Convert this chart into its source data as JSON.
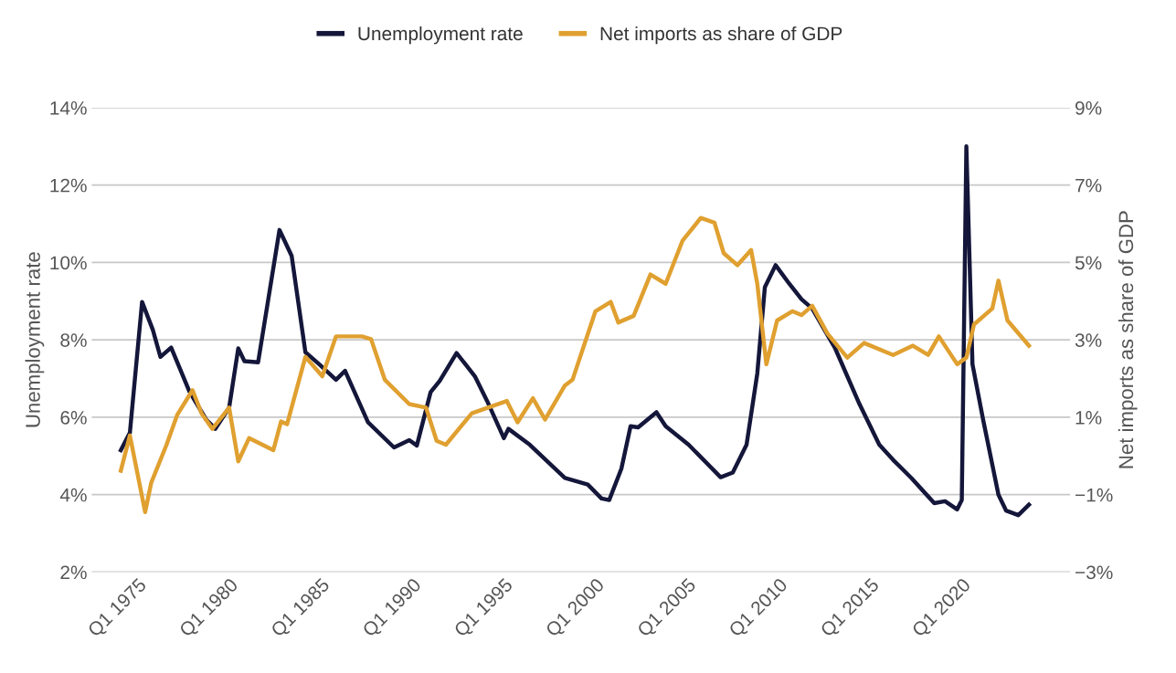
{
  "chart_data": {
    "type": "line",
    "ylabel": "Unemployment rate",
    "y2label": "Net imports as share of GDP",
    "xlim": [
      "1972-07",
      "2025-12"
    ],
    "xticks": [
      {
        "value": "1975-01",
        "label": "Q1 1975"
      },
      {
        "value": "1980-01",
        "label": "Q1 1980"
      },
      {
        "value": "1985-01",
        "label": "Q1 1985"
      },
      {
        "value": "1990-01",
        "label": "Q1 1990"
      },
      {
        "value": "1995-01",
        "label": "Q1 1995"
      },
      {
        "value": "2000-01",
        "label": "Q1 2000"
      },
      {
        "value": "2005-01",
        "label": "Q1 2005"
      },
      {
        "value": "2010-01",
        "label": "Q1 2010"
      },
      {
        "value": "2015-01",
        "label": "Q1 2015"
      },
      {
        "value": "2020-01",
        "label": "Q1 2020"
      }
    ],
    "ylim": [
      2,
      14
    ],
    "yticks": [
      {
        "value": 2,
        "label": "2%"
      },
      {
        "value": 4,
        "label": "4%"
      },
      {
        "value": 6,
        "label": "6%"
      },
      {
        "value": 8,
        "label": "8%"
      },
      {
        "value": 10,
        "label": "10%"
      },
      {
        "value": 12,
        "label": "12%"
      },
      {
        "value": 14,
        "label": "14%"
      }
    ],
    "y2lim": [
      -3,
      9
    ],
    "y2ticks": [
      {
        "value": -3,
        "label": "−3%"
      },
      {
        "value": -1,
        "label": "−1%"
      },
      {
        "value": 1,
        "label": "1%"
      },
      {
        "value": 3,
        "label": "3%"
      },
      {
        "value": 5,
        "label": "5%"
      },
      {
        "value": 7,
        "label": "7%"
      },
      {
        "value": 9,
        "label": "9%"
      }
    ],
    "grid": "y",
    "legend": "top",
    "marker": "none",
    "line_style": "solid",
    "series": [
      {
        "name": "Unemployment rate",
        "color": "#14163a",
        "x": [
          "1974-02",
          "1974-08",
          "1975-04",
          "1975-11",
          "1976-04",
          "1976-11",
          "1977-11",
          "1978-10",
          "1979-04",
          "1980-01",
          "1980-07",
          "1980-11",
          "1981-08",
          "1982-10",
          "1983-06",
          "1984-03",
          "1984-12",
          "1985-11",
          "1986-05",
          "1987-08",
          "1989-01",
          "1989-11",
          "1990-04",
          "1991-01",
          "1991-07",
          "1992-06",
          "1993-06",
          "1994-02",
          "1995-01",
          "1995-04",
          "1996-06",
          "1998-05",
          "1999-08",
          "2000-05",
          "2000-10",
          "2001-06",
          "2001-12",
          "2002-05",
          "2003-05",
          "2003-11",
          "2005-02",
          "2006-11",
          "2007-07",
          "2008-04",
          "2008-11",
          "2009-04",
          "2009-11",
          "2010-08",
          "2011-04",
          "2011-11",
          "2013-02",
          "2014-06",
          "2015-07",
          "2016-04",
          "2017-04",
          "2018-07",
          "2019-02",
          "2019-10",
          "2020-01",
          "2020-04",
          "2020-08",
          "2021-03",
          "2022-01",
          "2022-06",
          "2023-02",
          "2023-09"
        ],
        "values": [
          5.15,
          5.6,
          8.98,
          8.26,
          7.56,
          7.8,
          6.66,
          5.94,
          5.7,
          6.25,
          7.78,
          7.45,
          7.42,
          10.84,
          10.17,
          7.68,
          7.37,
          6.97,
          7.2,
          5.87,
          5.22,
          5.41,
          5.27,
          6.65,
          6.94,
          7.66,
          7.06,
          6.42,
          5.46,
          5.7,
          5.29,
          4.43,
          4.26,
          3.9,
          3.86,
          4.67,
          5.77,
          5.74,
          6.13,
          5.77,
          5.29,
          4.45,
          4.57,
          5.29,
          7.13,
          9.36,
          9.93,
          9.45,
          9.05,
          8.81,
          7.78,
          6.34,
          5.29,
          4.9,
          4.43,
          3.78,
          3.83,
          3.62,
          3.86,
          13.0,
          7.37,
          5.94,
          4.0,
          3.59,
          3.47,
          3.74
        ]
      },
      {
        "name": "Net imports as share of GDP",
        "color": "#e0a030",
        "axis": "y2",
        "x": [
          "1974-02",
          "1974-08",
          "1975-06",
          "1975-10",
          "1976-08",
          "1977-03",
          "1978-01",
          "1978-07",
          "1979-02",
          "1980-01",
          "1980-07",
          "1981-02",
          "1982-06",
          "1982-11",
          "1983-03",
          "1984-03",
          "1985-02",
          "1985-11",
          "1987-04",
          "1987-10",
          "1988-07",
          "1989-11",
          "1990-10",
          "1991-05",
          "1991-11",
          "1993-04",
          "1995-03",
          "1995-10",
          "1996-08",
          "1997-04",
          "1998-05",
          "1998-10",
          "2000-01",
          "2000-11",
          "2001-04",
          "2002-02",
          "2003-01",
          "2003-11",
          "2004-10",
          "2005-10",
          "2006-07",
          "2007-01",
          "2007-10",
          "2008-07",
          "2008-11",
          "2009-05",
          "2009-12",
          "2010-10",
          "2011-04",
          "2011-11",
          "2012-09",
          "2013-10",
          "2014-09",
          "2016-04",
          "2017-05",
          "2018-03",
          "2018-10",
          "2019-10",
          "2020-04",
          "2020-09",
          "2021-09",
          "2022-01",
          "2022-07",
          "2023-09"
        ],
        "values": [
          -0.38,
          0.53,
          -1.45,
          -0.69,
          0.29,
          1.06,
          1.7,
          1.1,
          0.7,
          1.25,
          -0.14,
          0.46,
          0.15,
          0.89,
          0.82,
          2.56,
          2.06,
          3.09,
          3.09,
          3.02,
          1.97,
          1.34,
          1.25,
          0.39,
          0.29,
          1.1,
          1.42,
          0.87,
          1.49,
          0.94,
          1.82,
          1.97,
          3.74,
          3.98,
          3.45,
          3.62,
          4.69,
          4.45,
          5.56,
          6.15,
          6.03,
          5.24,
          4.93,
          5.32,
          4.45,
          2.37,
          3.5,
          3.74,
          3.64,
          3.88,
          3.16,
          2.54,
          2.92,
          2.61,
          2.85,
          2.61,
          3.09,
          2.37,
          2.54,
          3.4,
          3.81,
          4.53,
          3.5,
          2.85
        ]
      }
    ]
  }
}
